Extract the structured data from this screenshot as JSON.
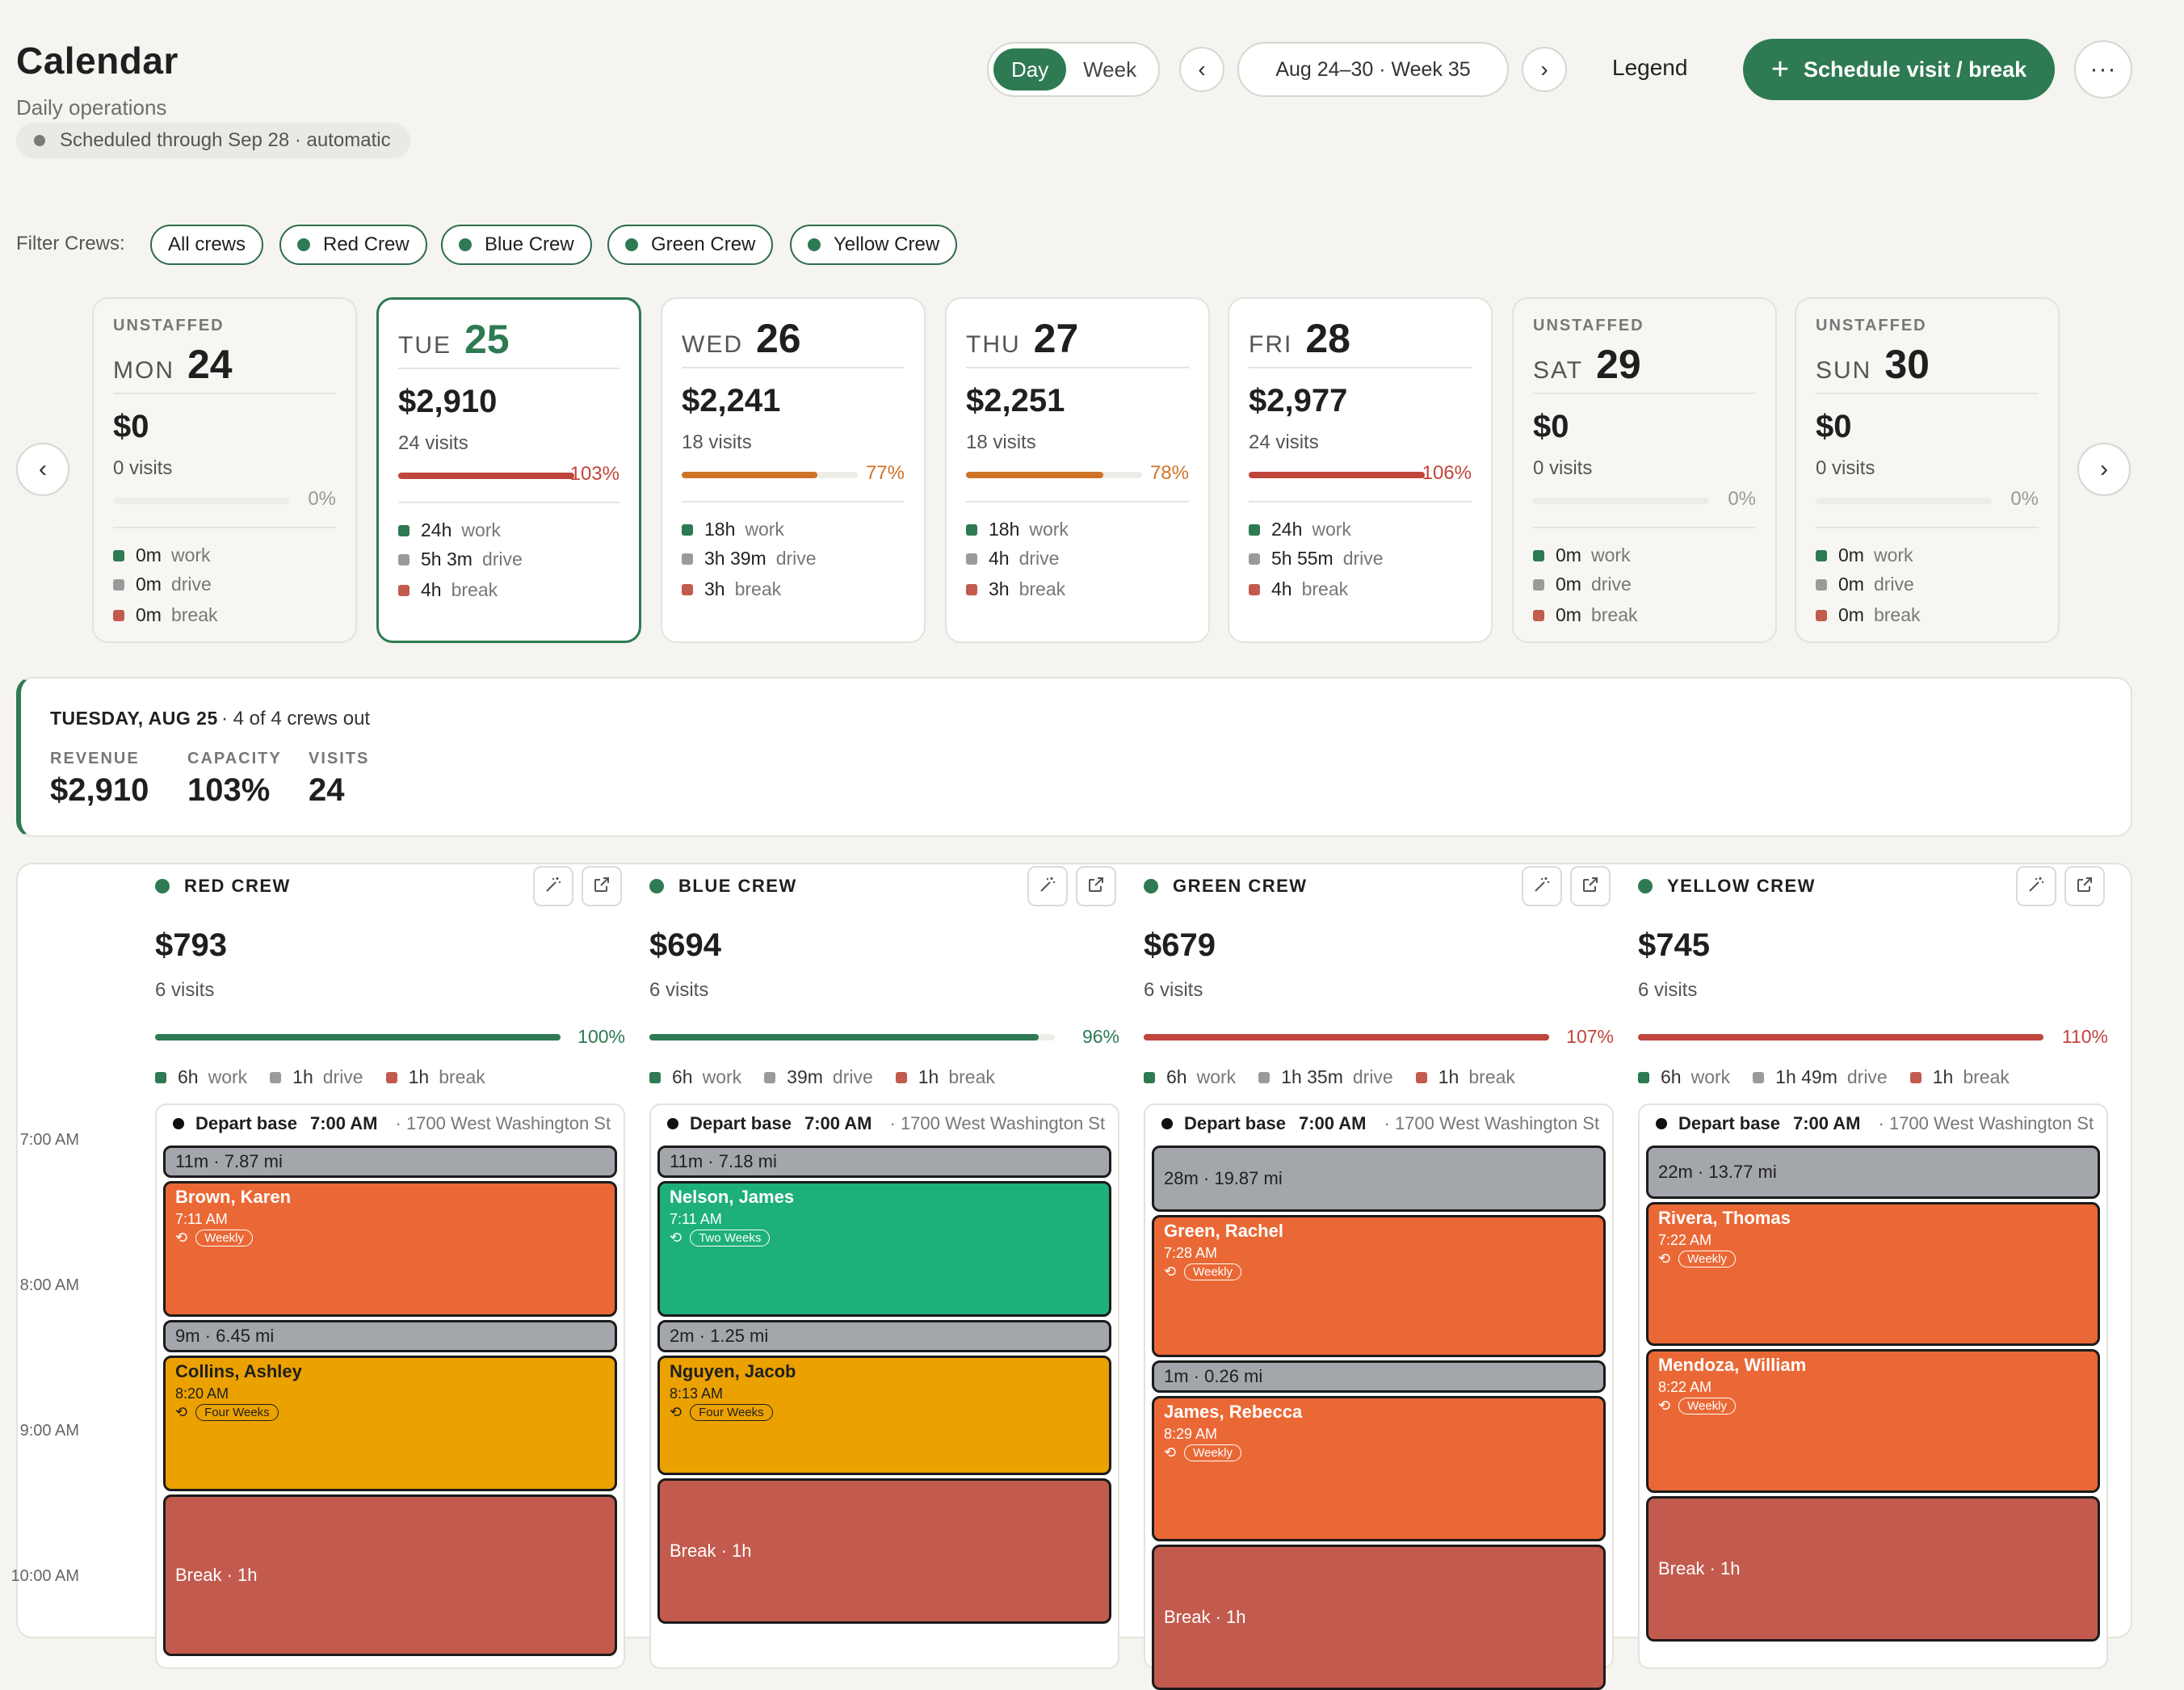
{
  "header": {
    "title": "Calendar",
    "subtitle": "Daily operations",
    "auto_status": "Scheduled through Sep 28 · automatic",
    "view_day": "Day",
    "view_week": "Week",
    "week_range": "Aug 24–30 · Week 35",
    "legend": "Legend",
    "schedule_button": "Schedule visit / break",
    "more": "···"
  },
  "filters": {
    "label": "Filter Crews:",
    "chips": [
      "All crews",
      "Red Crew",
      "Blue Crew",
      "Green Crew",
      "Yellow Crew"
    ]
  },
  "days": [
    {
      "unstaffed": "UNSTAFFED",
      "dow": "MON",
      "num": "24",
      "revenue": "$0",
      "visits": "0 visits",
      "capacity": 0,
      "pct": "0%",
      "work": "0m",
      "drive": "0m",
      "brk": "0m"
    },
    {
      "unstaffed": "",
      "dow": "TUE",
      "num": "25",
      "revenue": "$2,910",
      "visits": "24 visits",
      "capacity": 1.03,
      "pct": "103%",
      "work": "24h",
      "drive": "5h 3m",
      "brk": "4h"
    },
    {
      "unstaffed": "",
      "dow": "WED",
      "num": "26",
      "revenue": "$2,241",
      "visits": "18 visits",
      "capacity": 0.77,
      "pct": "77%",
      "work": "18h",
      "drive": "3h 39m",
      "brk": "3h"
    },
    {
      "unstaffed": "",
      "dow": "THU",
      "num": "27",
      "revenue": "$2,251",
      "visits": "18 visits",
      "capacity": 0.78,
      "pct": "78%",
      "work": "18h",
      "drive": "4h",
      "brk": "3h"
    },
    {
      "unstaffed": "",
      "dow": "FRI",
      "num": "28",
      "revenue": "$2,977",
      "visits": "24 visits",
      "capacity": 1.06,
      "pct": "106%",
      "work": "24h",
      "drive": "5h 55m",
      "brk": "4h"
    },
    {
      "unstaffed": "UNSTAFFED",
      "dow": "SAT",
      "num": "29",
      "revenue": "$0",
      "visits": "0 visits",
      "capacity": 0,
      "pct": "0%",
      "work": "0m",
      "drive": "0m",
      "brk": "0m"
    },
    {
      "unstaffed": "UNSTAFFED",
      "dow": "SUN",
      "num": "30",
      "revenue": "$0",
      "visits": "0 visits",
      "capacity": 0,
      "pct": "0%",
      "work": "0m",
      "drive": "0m",
      "brk": "0m"
    }
  ],
  "stat_labels": {
    "work": "work",
    "drive": "drive",
    "break": "break"
  },
  "summary": {
    "date": "TUESDAY, AUG 25",
    "crews_out": "· 4 of 4 crews out",
    "revenue_label": "REVENUE",
    "revenue": "$2,910",
    "capacity_label": "CAPACITY",
    "capacity": "103%",
    "visits_label": "VISITS",
    "visits": "24"
  },
  "time_labels": [
    "7:00 AM",
    "8:00 AM",
    "9:00 AM",
    "10:00 AM"
  ],
  "crews": [
    {
      "name": "RED CREW",
      "revenue": "$793",
      "visits": "6 visits",
      "capacity": 1.0,
      "pct": "100%",
      "work": "6h",
      "drive": "1h",
      "brk": "1h",
      "depart_label": "Depart base",
      "depart_time": "7:00 AM",
      "depart_addr": "· 1700 West Washington St",
      "blocks": [
        {
          "type": "drive",
          "text": "11m · 7.87 mi"
        },
        {
          "type": "visit",
          "name": "Brown, Karen",
          "time": "7:11 AM",
          "recur": "Weekly",
          "color": "orange"
        },
        {
          "type": "drive",
          "text": "9m · 6.45 mi"
        },
        {
          "type": "visit",
          "name": "Collins, Ashley",
          "time": "8:20 AM",
          "recur": "Four Weeks",
          "color": "yellow"
        },
        {
          "type": "break",
          "text": "Break · 1h"
        }
      ]
    },
    {
      "name": "BLUE CREW",
      "revenue": "$694",
      "visits": "6 visits",
      "capacity": 0.96,
      "pct": "96%",
      "work": "6h",
      "drive": "39m",
      "brk": "1h",
      "depart_label": "Depart base",
      "depart_time": "7:00 AM",
      "depart_addr": "· 1700 West Washington St",
      "blocks": [
        {
          "type": "drive",
          "text": "11m · 7.18 mi"
        },
        {
          "type": "visit",
          "name": "Nelson, James",
          "time": "7:11 AM",
          "recur": "Two Weeks",
          "color": "green"
        },
        {
          "type": "drive",
          "text": "2m · 1.25 mi"
        },
        {
          "type": "visit",
          "name": "Nguyen, Jacob",
          "time": "8:13 AM",
          "recur": "Four Weeks",
          "color": "yellow"
        },
        {
          "type": "break",
          "text": "Break · 1h"
        }
      ]
    },
    {
      "name": "GREEN CREW",
      "revenue": "$679",
      "visits": "6 visits",
      "capacity": 1.07,
      "pct": "107%",
      "work": "6h",
      "drive": "1h 35m",
      "brk": "1h",
      "depart_label": "Depart base",
      "depart_time": "7:00 AM",
      "depart_addr": "· 1700 West Washington St",
      "blocks": [
        {
          "type": "drive",
          "text": "28m · 19.87 mi"
        },
        {
          "type": "visit",
          "name": "Green, Rachel",
          "time": "7:28 AM",
          "recur": "Weekly",
          "color": "orange"
        },
        {
          "type": "drive",
          "text": "1m · 0.26 mi"
        },
        {
          "type": "visit",
          "name": "James, Rebecca",
          "time": "8:29 AM",
          "recur": "Weekly",
          "color": "orange"
        },
        {
          "type": "break",
          "text": "Break · 1h"
        }
      ]
    },
    {
      "name": "YELLOW CREW",
      "revenue": "$745",
      "visits": "6 visits",
      "capacity": 1.1,
      "pct": "110%",
      "work": "6h",
      "drive": "1h 49m",
      "brk": "1h",
      "depart_label": "Depart base",
      "depart_time": "7:00 AM",
      "depart_addr": "· 1700 West Washington St",
      "blocks": [
        {
          "type": "drive",
          "text": "22m · 13.77 mi"
        },
        {
          "type": "visit",
          "name": "Rivera, Thomas",
          "time": "7:22 AM",
          "recur": "Weekly",
          "color": "orange"
        },
        {
          "type": "visit",
          "name": "Mendoza, William",
          "time": "8:22 AM",
          "recur": "Weekly",
          "color": "orange"
        },
        {
          "type": "break",
          "text": "Break · 1h"
        }
      ]
    }
  ],
  "colors": {
    "accent": "#2e7a52",
    "work": "#2e7a52",
    "drive": "#9a9a9a",
    "break": "#c25b4e",
    "over": "#c0453c",
    "mid": "#cf7329",
    "visit_orange": "#ea6835",
    "visit_green": "#1db07b",
    "visit_yellow": "#eba100"
  }
}
